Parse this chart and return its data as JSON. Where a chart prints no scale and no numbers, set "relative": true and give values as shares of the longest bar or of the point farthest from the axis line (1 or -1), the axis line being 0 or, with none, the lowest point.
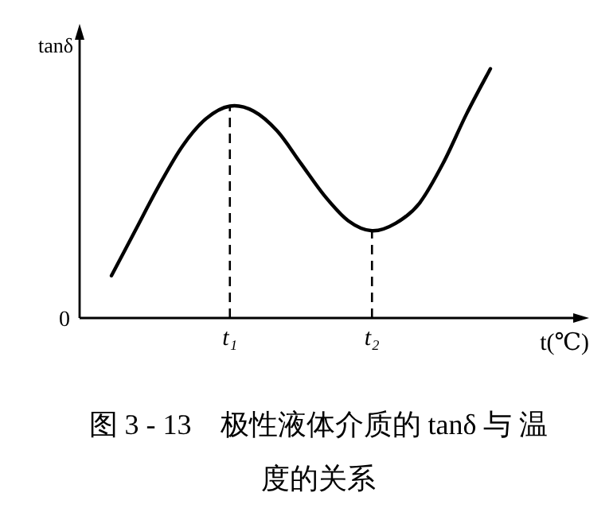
{
  "chart_data": {
    "type": "line",
    "relative": true,
    "title": "图 3 - 13　极性液体介质的 tanδ 与 温度的关系",
    "xlabel": "t(℃)",
    "ylabel": "tanδ",
    "categories": [
      null,
      null,
      null,
      null,
      null,
      "t₁",
      null,
      null,
      null,
      null,
      null,
      "t₂",
      null,
      null,
      null,
      null,
      null
    ],
    "series": [
      {
        "color": "#000000",
        "values": [
          0.17,
          0.35,
          0.53,
          0.69,
          0.8,
          0.85,
          0.83,
          0.75,
          0.62,
          0.49,
          0.39,
          0.35,
          0.38,
          0.46,
          0.62,
          0.82,
          1
        ]
      }
    ],
    "ref_lines": [
      {
        "axis": "x",
        "value": "t₁",
        "line_style": "dashed"
      },
      {
        "axis": "x",
        "value": "t₂",
        "line_style": "dashed"
      }
    ],
    "annotations": [
      "0"
    ],
    "line_style": "solid"
  }
}
